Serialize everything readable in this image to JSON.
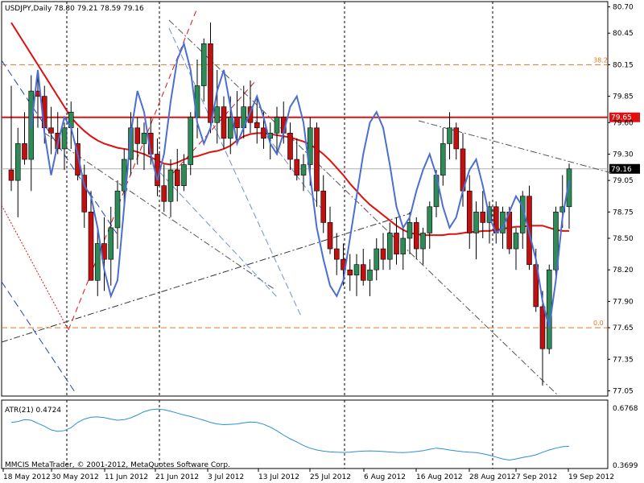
{
  "header": {
    "symbol_text": "USDJPY,Daily  78.80 79.21 78.59 79.16"
  },
  "colors": {
    "bull": "#2e8b57",
    "bear": "#c01010",
    "ma": "#e01010",
    "osc": "#4a6fd0",
    "atr": "#2a8fd0",
    "fib": "#e07820",
    "resistance": "#e01010",
    "current": "#b0b0b0"
  },
  "chart_data": [
    {
      "type": "candlestick",
      "title": "USDJPY,Daily",
      "ohlc_last": {
        "open": 78.8,
        "high": 79.21,
        "low": 78.59,
        "close": 79.16
      },
      "ylim": [
        77.0,
        80.75
      ],
      "y_ticks": [
        "80.70",
        "80.45",
        "80.15",
        "79.85",
        "79.60",
        "79.30",
        "79.05",
        "78.75",
        "78.50",
        "78.20",
        "77.90",
        "77.65",
        "77.35",
        "77.05"
      ],
      "x_ticks": [
        "18 May 2012",
        "30 May 2012",
        "11 Jun 2012",
        "21 Jun 2012",
        "3 Jul 2012",
        "13 Jul 2012",
        "25 Jul 2012",
        "6 Aug 2012",
        "16 Aug 2012",
        "28 Aug 2012",
        "7 Sep 2012",
        "19 Sep 2012"
      ],
      "candles": [
        [
          79.15,
          79.95,
          78.95,
          79.05
        ],
        [
          79.05,
          79.55,
          78.7,
          79.4
        ],
        [
          79.4,
          79.7,
          79.2,
          79.25
        ],
        [
          79.25,
          80.05,
          78.95,
          79.9
        ],
        [
          79.9,
          80.1,
          79.55,
          79.85
        ],
        [
          79.85,
          79.95,
          79.4,
          79.55
        ],
        [
          79.55,
          79.75,
          79.3,
          79.5
        ],
        [
          79.5,
          79.7,
          79.3,
          79.35
        ],
        [
          79.35,
          79.6,
          79.15,
          79.55
        ],
        [
          79.55,
          79.8,
          79.35,
          79.7
        ],
        [
          79.4,
          79.55,
          79.05,
          79.1
        ],
        [
          79.1,
          79.2,
          78.6,
          78.75
        ],
        [
          78.75,
          78.95,
          78.1,
          78.1
        ],
        [
          78.1,
          78.6,
          77.95,
          78.45
        ],
        [
          78.45,
          78.7,
          78.0,
          78.3
        ],
        [
          78.3,
          78.8,
          78.05,
          78.6
        ],
        [
          78.6,
          79.05,
          78.4,
          78.95
        ],
        [
          78.95,
          79.35,
          78.8,
          79.25
        ],
        [
          79.25,
          79.7,
          79.1,
          79.55
        ],
        [
          79.55,
          79.65,
          79.2,
          79.4
        ],
        [
          79.4,
          79.6,
          79.15,
          79.5
        ],
        [
          79.5,
          79.65,
          79.2,
          79.3
        ],
        [
          79.3,
          79.45,
          78.9,
          79.0
        ],
        [
          79.0,
          79.2,
          78.75,
          78.85
        ],
        [
          78.85,
          79.25,
          78.7,
          79.15
        ],
        [
          79.15,
          79.35,
          78.85,
          79.0
        ],
        [
          79.0,
          79.3,
          78.95,
          79.2
        ],
        [
          79.2,
          79.7,
          79.1,
          79.65
        ],
        [
          79.65,
          80.2,
          79.45,
          79.95
        ],
        [
          79.95,
          80.4,
          79.8,
          80.35
        ],
        [
          80.35,
          80.55,
          79.5,
          79.6
        ],
        [
          79.6,
          80.1,
          79.4,
          79.75
        ],
        [
          79.75,
          79.85,
          79.35,
          79.45
        ],
        [
          79.45,
          79.85,
          79.3,
          79.65
        ],
        [
          79.65,
          79.9,
          79.4,
          79.55
        ],
        [
          79.55,
          79.95,
          79.45,
          79.75
        ],
        [
          79.75,
          80.0,
          79.5,
          79.6
        ],
        [
          79.6,
          79.85,
          79.4,
          79.55
        ],
        [
          79.55,
          79.7,
          79.35,
          79.45
        ],
        [
          79.45,
          79.6,
          79.25,
          79.5
        ],
        [
          79.5,
          79.75,
          79.3,
          79.65
        ],
        [
          79.65,
          79.8,
          79.4,
          79.5
        ],
        [
          79.5,
          79.6,
          79.15,
          79.25
        ],
        [
          79.25,
          79.45,
          79.05,
          79.1
        ],
        [
          79.1,
          79.3,
          78.95,
          79.2
        ],
        [
          79.2,
          79.65,
          79.0,
          79.55
        ],
        [
          79.55,
          79.6,
          78.8,
          78.95
        ],
        [
          78.95,
          79.1,
          78.55,
          78.65
        ],
        [
          78.65,
          78.8,
          78.35,
          78.4
        ],
        [
          78.4,
          78.55,
          78.15,
          78.3
        ],
        [
          78.3,
          78.45,
          78.05,
          78.2
        ],
        [
          78.2,
          78.35,
          78.0,
          78.15
        ],
        [
          78.15,
          78.35,
          77.95,
          78.25
        ],
        [
          78.25,
          78.4,
          78.05,
          78.1
        ],
        [
          78.1,
          78.3,
          77.95,
          78.2
        ],
        [
          78.2,
          78.5,
          78.1,
          78.4
        ],
        [
          78.4,
          78.55,
          78.2,
          78.3
        ],
        [
          78.3,
          78.65,
          78.2,
          78.55
        ],
        [
          78.55,
          78.7,
          78.25,
          78.35
        ],
        [
          78.35,
          78.6,
          78.2,
          78.5
        ],
        [
          78.5,
          78.75,
          78.35,
          78.65
        ],
        [
          78.65,
          78.7,
          78.3,
          78.4
        ],
        [
          78.4,
          78.6,
          78.25,
          78.55
        ],
        [
          78.55,
          78.85,
          78.4,
          78.8
        ],
        [
          78.8,
          79.15,
          78.7,
          79.1
        ],
        [
          79.1,
          79.55,
          79.0,
          79.4
        ],
        [
          79.4,
          79.7,
          79.25,
          79.55
        ],
        [
          79.55,
          79.6,
          79.25,
          79.35
        ],
        [
          79.35,
          79.5,
          78.8,
          78.95
        ],
        [
          78.95,
          79.1,
          78.4,
          78.55
        ],
        [
          78.55,
          78.85,
          78.3,
          78.75
        ],
        [
          78.75,
          78.95,
          78.5,
          78.65
        ],
        [
          78.65,
          78.85,
          78.45,
          78.8
        ],
        [
          78.8,
          78.85,
          78.45,
          78.55
        ],
        [
          78.55,
          78.8,
          78.4,
          78.75
        ],
        [
          78.75,
          78.8,
          78.35,
          78.4
        ],
        [
          78.4,
          78.6,
          78.2,
          78.55
        ],
        [
          78.55,
          78.95,
          78.4,
          78.9
        ],
        [
          78.9,
          79.0,
          78.2,
          78.25
        ],
        [
          78.25,
          78.4,
          77.8,
          77.85
        ],
        [
          77.85,
          78.0,
          77.1,
          77.45
        ],
        [
          77.45,
          78.25,
          77.4,
          78.2
        ],
        [
          78.2,
          78.8,
          78.1,
          78.75
        ],
        [
          78.75,
          79.1,
          78.6,
          78.8
        ],
        [
          78.8,
          79.21,
          78.59,
          79.16
        ]
      ],
      "moving_average": [
        80.55,
        80.45,
        80.35,
        80.25,
        80.15,
        80.05,
        79.95,
        79.85,
        79.75,
        79.65,
        79.58,
        79.52,
        79.47,
        79.43,
        79.4,
        79.38,
        79.36,
        79.35,
        79.34,
        79.32,
        79.3,
        79.27,
        79.24,
        79.21,
        79.2,
        79.22,
        79.25,
        79.27,
        79.28,
        79.3,
        79.32,
        79.33,
        79.35,
        79.38,
        79.43,
        79.47,
        79.49,
        79.5,
        79.5,
        79.49,
        79.48,
        79.47,
        79.46,
        79.44,
        79.42,
        79.39,
        79.35,
        79.3,
        79.24,
        79.17,
        79.1,
        79.02,
        78.95,
        78.88,
        78.82,
        78.77,
        78.72,
        78.67,
        78.62,
        78.58,
        78.55,
        78.54,
        78.53,
        78.53,
        78.53,
        78.53,
        78.54,
        78.54,
        78.55,
        78.56,
        78.56,
        78.57,
        78.57,
        78.58,
        78.59,
        78.6,
        78.61,
        78.61,
        78.62,
        78.62,
        78.62,
        78.6,
        78.58,
        78.57,
        78.57
      ],
      "oscillator": [
        79.55,
        80.1,
        79.5,
        79.1,
        79.4,
        79.65,
        79.55,
        79.3,
        79.0,
        78.9,
        78.6,
        78.2,
        77.95,
        78.1,
        78.8,
        79.5,
        79.9,
        79.7,
        79.3,
        79.05,
        79.3,
        79.8,
        80.2,
        80.35,
        80.1,
        79.6,
        79.4,
        79.55,
        79.9,
        80.1,
        79.75,
        79.4,
        79.55,
        79.7,
        79.85,
        79.65,
        79.4,
        79.3,
        79.5,
        79.75,
        79.85,
        79.6,
        79.1,
        78.6,
        78.3,
        78.05,
        77.95,
        78.1,
        78.5,
        78.9,
        79.3,
        79.6,
        79.7,
        79.55,
        79.2,
        78.8,
        78.6,
        78.7,
        78.95,
        79.15,
        79.3,
        79.1,
        78.8,
        78.6,
        78.7,
        78.95,
        79.15,
        79.25,
        79.0,
        78.7,
        78.55,
        78.6,
        78.75,
        78.9,
        78.8,
        78.55,
        78.3,
        77.9,
        77.65,
        78.1,
        78.7,
        79.05
      ],
      "levels": [
        {
          "label": "38.2",
          "value": 80.15,
          "kind": "fib"
        },
        {
          "label": "0.0",
          "value": 77.65,
          "kind": "fib"
        },
        {
          "label": "79.65",
          "value": 79.65,
          "kind": "resistance"
        },
        {
          "label": "79.16",
          "value": 79.16,
          "kind": "current"
        }
      ]
    },
    {
      "type": "line",
      "title": "ATR(21) 0.4724",
      "ylim": [
        0.3699,
        0.6768
      ],
      "y_ticks": [
        "0.6768",
        "0.3699"
      ],
      "values": [
        0.6,
        0.605,
        0.615,
        0.612,
        0.595,
        0.58,
        0.56,
        0.552,
        0.556,
        0.572,
        0.6,
        0.618,
        0.628,
        0.63,
        0.626,
        0.618,
        0.612,
        0.615,
        0.625,
        0.64,
        0.658,
        0.668,
        0.672,
        0.668,
        0.66,
        0.65,
        0.64,
        0.632,
        0.622,
        0.612,
        0.6,
        0.592,
        0.588,
        0.59,
        0.592,
        0.598,
        0.602,
        0.6,
        0.59,
        0.575,
        0.555,
        0.532,
        0.512,
        0.495,
        0.476,
        0.462,
        0.452,
        0.446,
        0.442,
        0.44,
        0.439,
        0.44,
        0.444,
        0.446,
        0.447,
        0.446,
        0.444,
        0.441,
        0.439,
        0.438,
        0.44,
        0.444,
        0.448,
        0.456,
        0.462,
        0.458,
        0.452,
        0.447,
        0.443,
        0.44,
        0.438,
        0.432,
        0.424,
        0.414,
        0.404,
        0.398,
        0.404,
        0.412,
        0.418,
        0.426,
        0.44,
        0.452,
        0.462,
        0.47,
        0.472
      ]
    }
  ],
  "footer": {
    "copyright": "MMCIS MetaTrader, © 2001-2012, MetaQuotes Software Corp."
  }
}
